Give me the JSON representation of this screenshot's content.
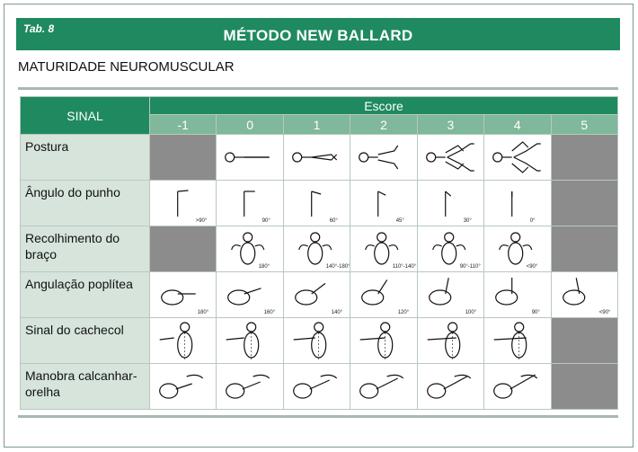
{
  "header": {
    "tab": "Tab. 8",
    "title": "MÉTODO NEW BALLARD"
  },
  "subtitle": "MATURIDADE NEUROMUSCULAR",
  "table": {
    "sinal_header": "SINAL",
    "escore_header": "Escore",
    "scores": [
      "-1",
      "0",
      "1",
      "2",
      "3",
      "4",
      "5"
    ],
    "rows": [
      {
        "label": "Postura",
        "cells": [
          "",
          "",
          "",
          "",
          "",
          "",
          ""
        ]
      },
      {
        "label": "Ângulo do punho",
        "cells": [
          ">90°",
          "90°",
          "60°",
          "45°",
          "30°",
          "0°",
          ""
        ]
      },
      {
        "label": "Recolhimento do braço",
        "cells": [
          "",
          "180°",
          "140°-180°",
          "110°-140°",
          "90°-110°",
          "<90°",
          ""
        ]
      },
      {
        "label": "Angulação poplítea",
        "cells": [
          "180°",
          "160°",
          "140°",
          "120°",
          "100°",
          "90°",
          "<90°"
        ]
      },
      {
        "label": "Sinal do cachecol",
        "cells": [
          "",
          "",
          "",
          "",
          "",
          "",
          ""
        ]
      },
      {
        "label": "Manobra calcanhar-orelha",
        "cells": [
          "",
          "",
          "",
          "",
          "",
          "",
          ""
        ]
      }
    ],
    "gray_cells": [
      [
        0,
        0
      ],
      [
        0,
        6
      ],
      [
        1,
        6
      ],
      [
        2,
        0
      ],
      [
        2,
        6
      ],
      [
        4,
        6
      ],
      [
        5,
        6
      ]
    ]
  },
  "colors": {
    "header_green": "#1f8a5f",
    "score_green": "#7fb89a",
    "label_bg": "#d6e4dc",
    "gray_cell": "#8c8c8c"
  }
}
